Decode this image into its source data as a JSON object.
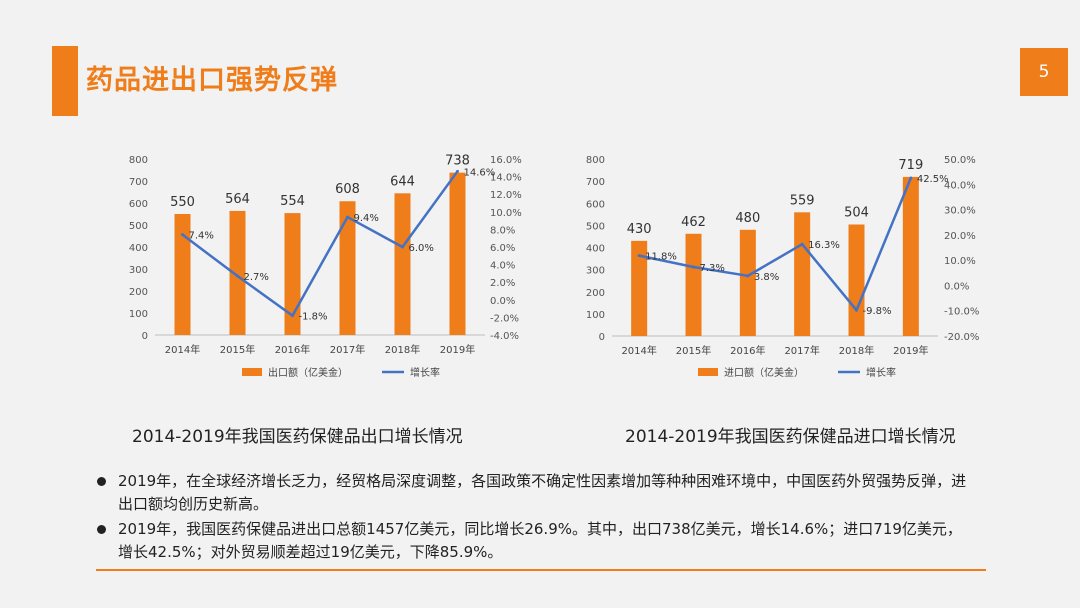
{
  "slide": {
    "title": "药品进出口强势反弹",
    "page_number": "5",
    "accent_color": "#ee7d1a"
  },
  "chart_data": [
    {
      "type": "bar",
      "title": "2014-2019年我国医药保健品出口增长情况",
      "categories": [
        "2014年",
        "2015年",
        "2016年",
        "2017年",
        "2018年",
        "2019年"
      ],
      "series": [
        {
          "name": "出口额（亿美金）",
          "type": "bar",
          "axis": "left",
          "color": "#ee7d1a",
          "values": [
            550,
            564,
            554,
            608,
            644,
            738
          ],
          "labels": [
            "550",
            "564",
            "554",
            "608",
            "644",
            "738"
          ]
        },
        {
          "name": "增长率",
          "type": "line",
          "axis": "right",
          "color": "#4472c4",
          "values": [
            7.4,
            2.7,
            -1.8,
            9.4,
            6.0,
            14.6
          ],
          "labels": [
            "7.4%",
            "2.7%",
            "-1.8%",
            "9.4%",
            "6.0%",
            "14.6%"
          ]
        }
      ],
      "y_left": {
        "min": 0,
        "max": 800,
        "ticks": [
          "0",
          "100",
          "200",
          "300",
          "400",
          "500",
          "600",
          "700",
          "800"
        ]
      },
      "y_right": {
        "min": -4,
        "max": 16,
        "ticks": [
          "-4.0%",
          "-2.0%",
          "0.0%",
          "2.0%",
          "4.0%",
          "6.0%",
          "8.0%",
          "10.0%",
          "12.0%",
          "14.0%",
          "16.0%"
        ]
      },
      "legend": "bottom",
      "grid": false
    },
    {
      "type": "bar",
      "title": "2014-2019年我国医药保健品进口增长情况",
      "categories": [
        "2014年",
        "2015年",
        "2016年",
        "2017年",
        "2018年",
        "2019年"
      ],
      "series": [
        {
          "name": "进口额（亿美金）",
          "type": "bar",
          "axis": "left",
          "color": "#ee7d1a",
          "values": [
            430,
            462,
            480,
            559,
            504,
            719
          ],
          "labels": [
            "430",
            "462",
            "480",
            "559",
            "504",
            "719"
          ]
        },
        {
          "name": "增长率",
          "type": "line",
          "axis": "right",
          "color": "#4472c4",
          "values": [
            11.8,
            7.3,
            3.8,
            16.3,
            -9.8,
            42.5
          ],
          "labels": [
            "11.8%",
            "7.3%",
            "3.8%",
            "16.3%",
            "-9.8%",
            "42.5%"
          ]
        }
      ],
      "y_left": {
        "min": 0,
        "max": 800,
        "ticks": [
          "0",
          "100",
          "200",
          "300",
          "400",
          "500",
          "600",
          "700",
          "800"
        ]
      },
      "y_right": {
        "min": -20,
        "max": 50,
        "ticks": [
          "-20.0%",
          "-10.0%",
          "0.0%",
          "10.0%",
          "20.0%",
          "30.0%",
          "40.0%",
          "50.0%"
        ]
      },
      "legend": "bottom",
      "grid": false
    }
  ],
  "bullets": [
    "2019年，在全球经济增长乏力，经贸格局深度调整，各国政策不确定性因素增加等种种困难环境中，中国医药外贸强势反弹，进出口额均创历史新高。",
    "2019年，我国医药保健品进出口总额1457亿美元，同比增长26.9%。其中，出口738亿美元，增长14.6%；进口719亿美元，增长42.5%；对外贸易顺差超过19亿美元，下降85.9%。"
  ]
}
